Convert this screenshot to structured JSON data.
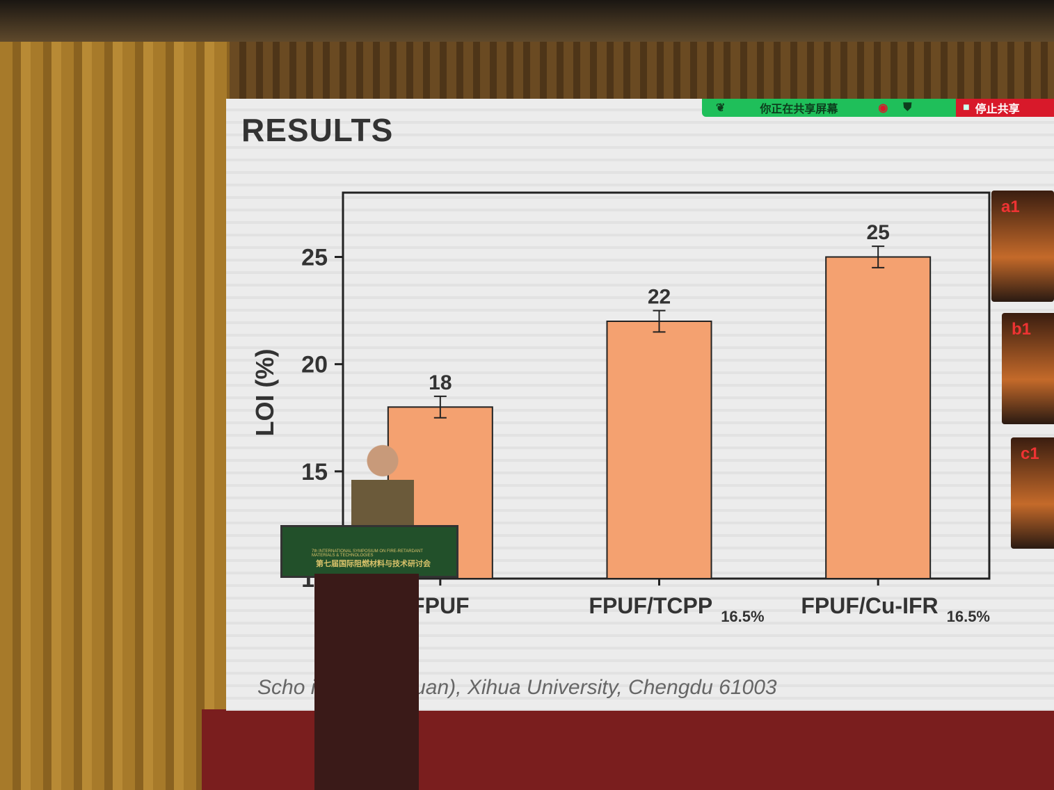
{
  "slide": {
    "title": "RESULTS",
    "footer": "Scho      ience (Sichuan), Xihua University, Chengdu 61003"
  },
  "share_bar": {
    "status": "你正在共享屏幕",
    "stop_label": "停止共享",
    "colors": {
      "bar": "#1fbf5a",
      "stop": "#d8192a"
    }
  },
  "photos": [
    "a1",
    "b1",
    "c1"
  ],
  "podium": {
    "title_cn": "第七届国际阻燃材料与技术研讨会",
    "title_en": "7th INTERNATIONAL SYMPOSIUM ON FIRE-RETARDANT MATERIALS & TECHNOLOGIES"
  },
  "chart_data": {
    "type": "bar",
    "categories": [
      "FPUF",
      "FPUF/TCPP 16.5%",
      "FPUF/Cu-IFR 16.5%"
    ],
    "category_main": [
      "FPUF",
      "FPUF/TCPP",
      "FPUF/Cu-IFR"
    ],
    "category_sub": [
      "",
      "16.5%",
      "16.5%"
    ],
    "values": [
      18,
      22,
      25
    ],
    "data_labels": [
      "18",
      "22",
      "25"
    ],
    "error": [
      0.5,
      0.5,
      0.5
    ],
    "ylabel": "LOI (%)",
    "xlabel": "",
    "ylim": [
      10,
      28
    ],
    "yticks": [
      10,
      15,
      20,
      25
    ],
    "bar_color": "#f4a170",
    "grid": false
  }
}
